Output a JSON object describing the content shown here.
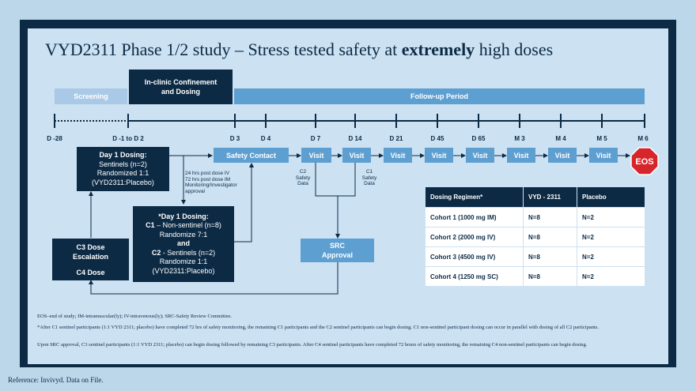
{
  "title": {
    "main": "VYD2311 Phase 1/2 study – Stress tested safety at ",
    "emph": "extremely",
    "tail": " high doses"
  },
  "phases": {
    "screening": "Screening",
    "confinement_line1": "In-clinic Confinement",
    "confinement_line2": "and Dosing",
    "followup": "Follow-up Period"
  },
  "timeline": [
    "D -28",
    "D -1 to D 2",
    "D 3",
    "D 4",
    "D 7",
    "D 14",
    "D 21",
    "D 45",
    "D 65",
    "M 3",
    "M 4",
    "M 5",
    "M 6"
  ],
  "safety_contact": "Safety Contact",
  "visit_label": "Visit",
  "eos": "EOS",
  "c2_note": [
    "C2",
    "Safety",
    "Data"
  ],
  "c1_note": [
    "C1",
    "Safety",
    "Data"
  ],
  "day1_box": {
    "title": "Day 1 Dosing:",
    "l1": "Sentinels (n=2)",
    "l2": "Randomized 1:1",
    "l3": "(VYD2311:Placebo)"
  },
  "monitor_note": [
    "24 hrs post dose IV",
    "72 hrs post dose IM",
    "Monitoring/Investigator",
    "approval"
  ],
  "star_box": {
    "title": "*Day 1 Dosing:",
    "c1_label": "C1",
    "c1_text": " – Non-sentinel (n=8)",
    "l2": "Randomize 7:1",
    "and": "and",
    "c2_label": "C2",
    "c2_text": " - Sentinels (n=2)",
    "l5": "Randomize 1:1",
    "l6": "(VYD2311:Placebo)"
  },
  "c3_box": {
    "l1": "C3 Dose",
    "l2": "Escalation",
    "l3": "C4 Dose"
  },
  "src_box": {
    "l1": "SRC",
    "l2": "Approval"
  },
  "table": {
    "headers": [
      "Dosing Regimen*",
      "VYD - 2311",
      "Placebo"
    ],
    "rows": [
      [
        "Cohort 1 (1000 mg IM)",
        "N=8",
        "N=2"
      ],
      [
        "Cohort 2 (2000 mg IV)",
        "N=8",
        "N=2"
      ],
      [
        "Cohort 3 (4500 mg IV)",
        "N=8",
        "N=2"
      ],
      [
        "Cohort 4 (1250 mg SC)",
        "N=8",
        "N=2"
      ]
    ]
  },
  "footnotes": {
    "f1": "EOS–end of study; IM-intramuscular(ly); IV-intravenous(ly); SRC-Safety Review Committee.",
    "f2": "*After C1 sentinel participants (1:1 VYD 2311; placebo) have completed 72 hrs of safety monitoring, the remaining C1 participants and the C2 sentinel participants can begin dosing.  C1 non-sentinel participant dosing can occur in parallel with dosing of all C2 participants.",
    "f3": "Upon SRC approval, C3 sentinel participants (1:1 VYD 2311; placebo) can begin dosing followed by remaining C3 participants. After C4 sentinel participants have completed 72 hours of safety monitoring, the remaining C4 non-sentinel participants can begin dosing."
  },
  "reference": "Reference: Invivyd. Data on File.",
  "colors": {
    "navy": "#0c2a44",
    "mid": "#5e9fd1",
    "light": "#a9c9e6",
    "eos": "#d7262b"
  }
}
